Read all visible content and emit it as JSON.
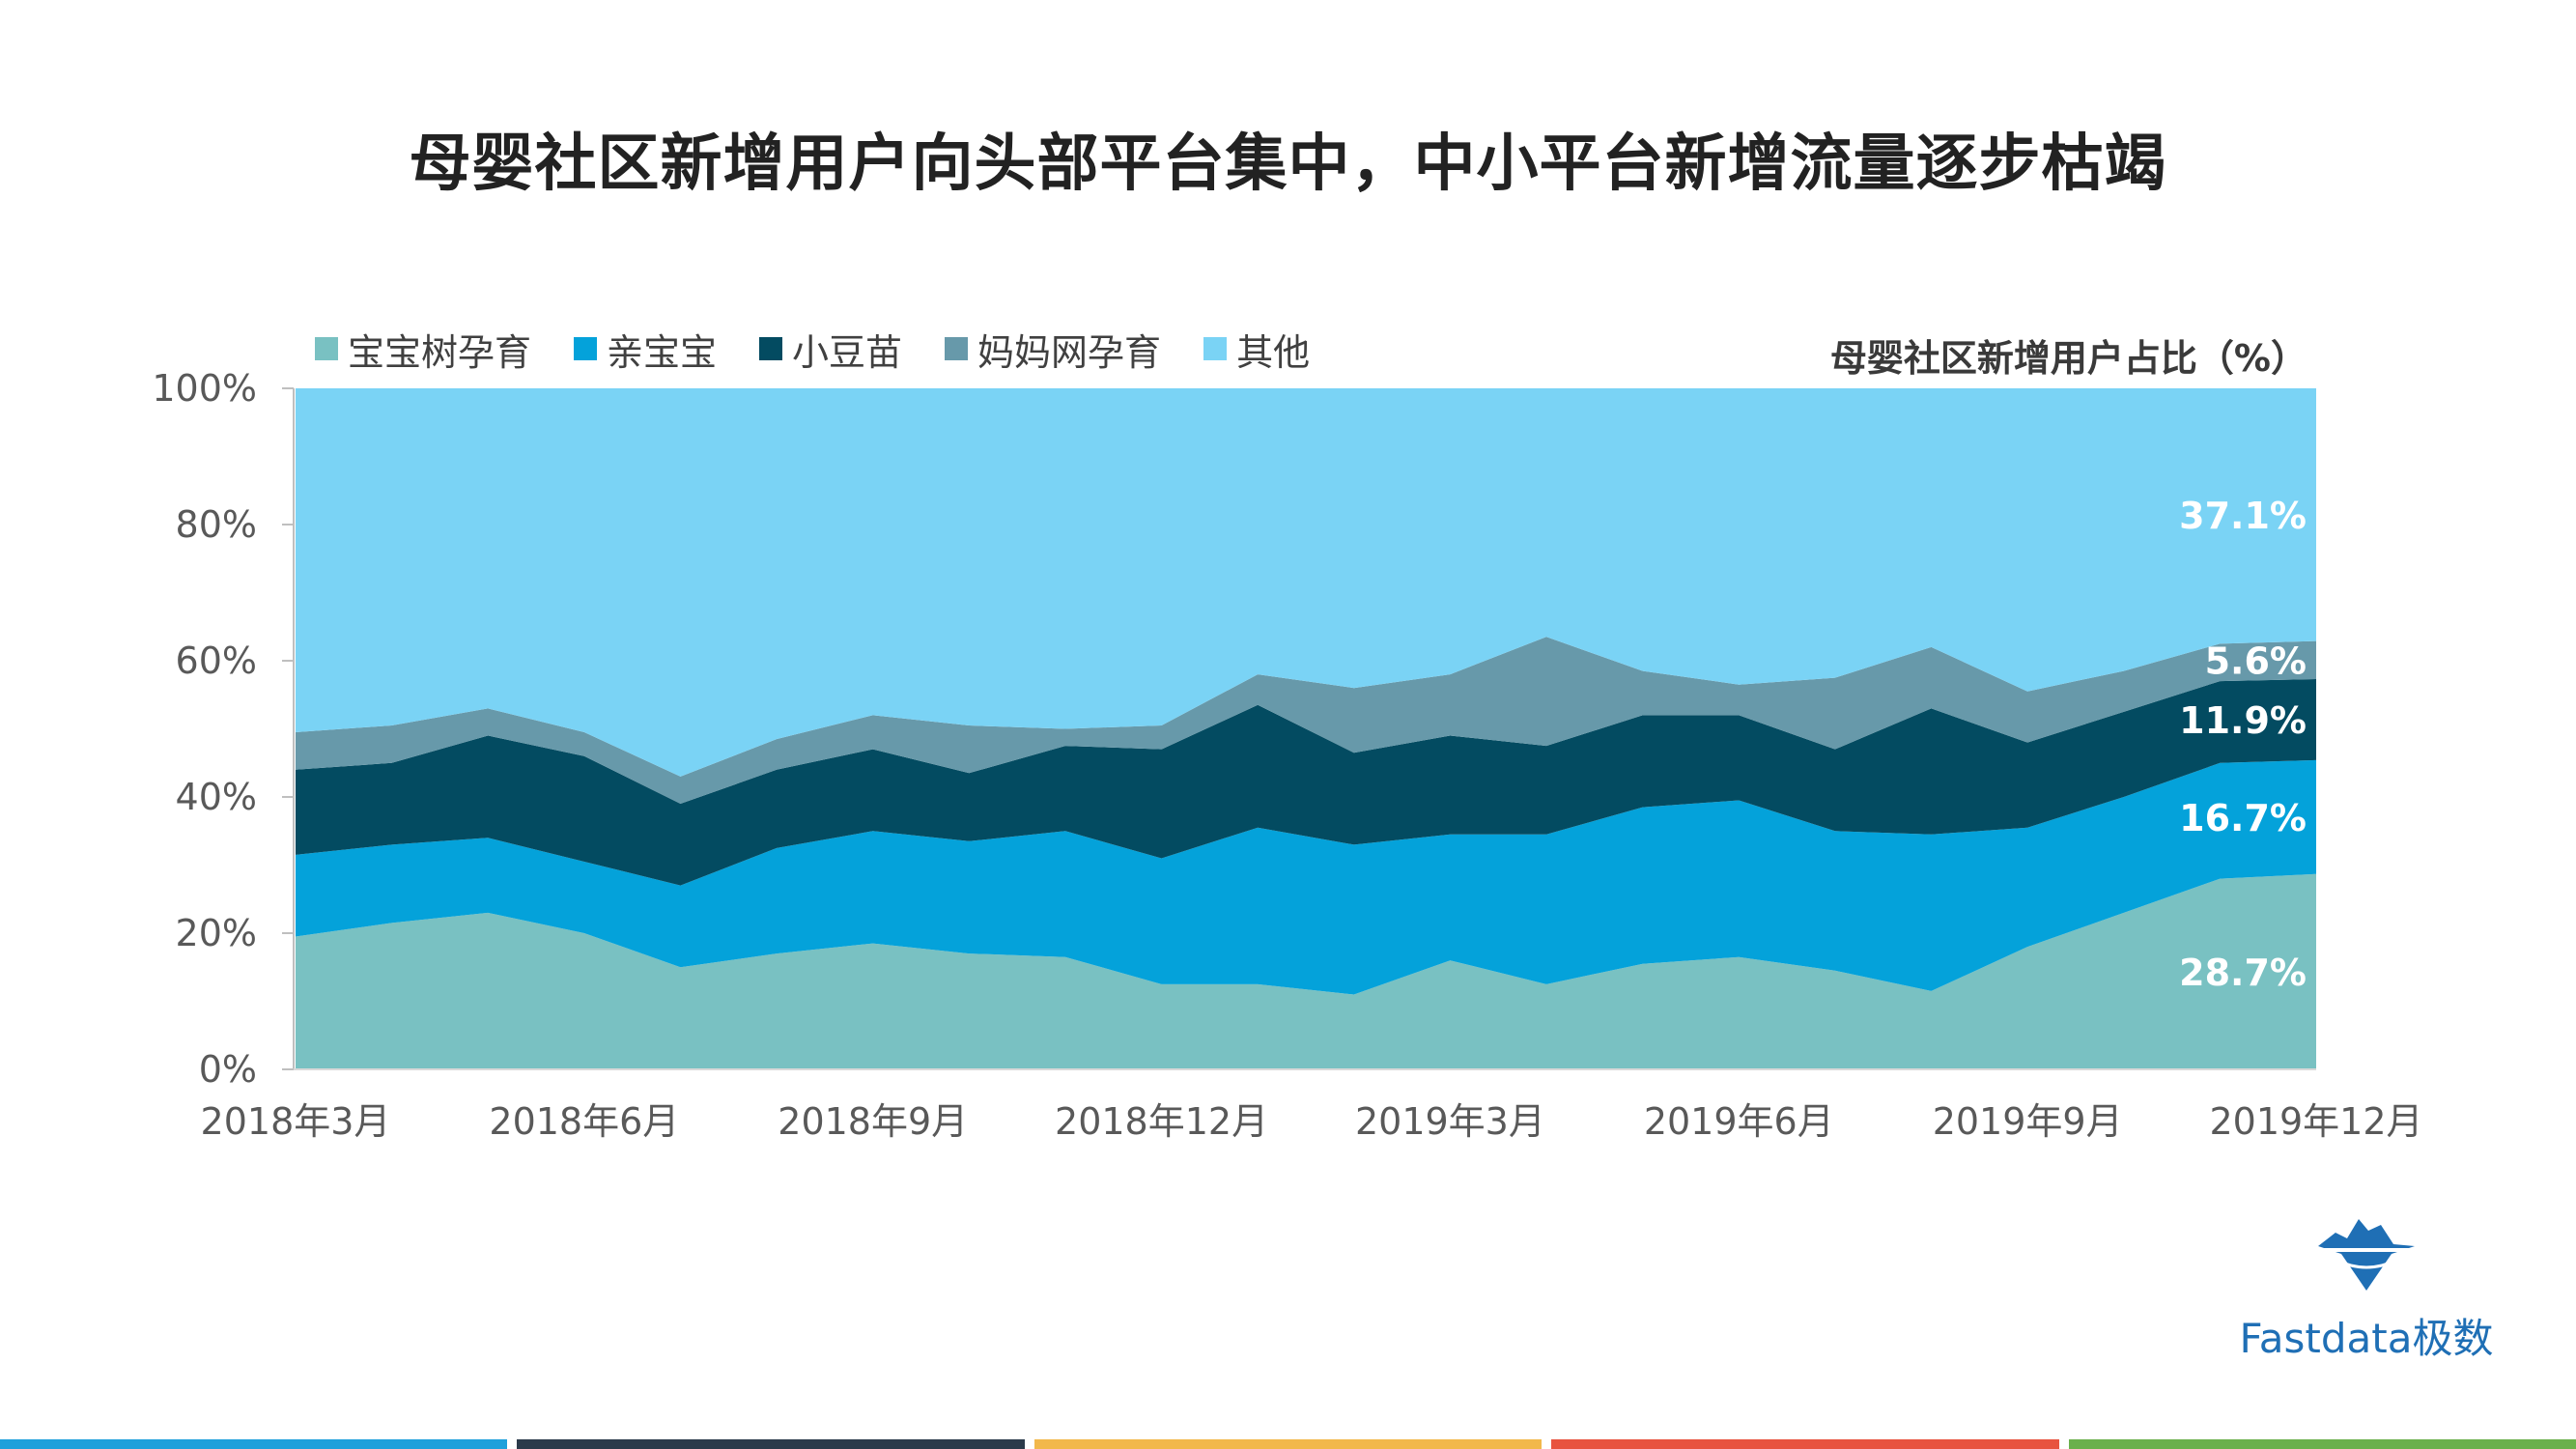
{
  "title": "母婴社区新增用户向头部平台集中，中小平台新增流量逐步枯竭",
  "brand": {
    "name": "Fastdata极数",
    "color": "#1f6fb5"
  },
  "footer_colors": [
    "#1ea0db",
    "#2b3a4a",
    "#f2b84b",
    "#e8533f",
    "#6ab04c"
  ],
  "chart_data": {
    "type": "area",
    "stacked": true,
    "subtitle": "母婴社区新增用户占比（%）",
    "x": [
      "2018年3月",
      "2018年4月",
      "2018年5月",
      "2018年6月",
      "2018年7月",
      "2018年8月",
      "2018年9月",
      "2018年10月",
      "2018年11月",
      "2018年12月",
      "2019年1月",
      "2019年2月",
      "2019年3月",
      "2019年4月",
      "2019年5月",
      "2019年6月",
      "2019年7月",
      "2019年8月",
      "2019年9月",
      "2019年10月",
      "2019年11月",
      "2019年12月"
    ],
    "tick_labels": [
      "2018年3月",
      "2018年6月",
      "2018年9月",
      "2018年12月",
      "2019年3月",
      "2019年6月",
      "2019年9月",
      "2019年12月"
    ],
    "tick_indices": [
      0,
      3,
      6,
      9,
      12,
      15,
      18,
      21
    ],
    "y_ticks": [
      "0%",
      "20%",
      "40%",
      "60%",
      "80%",
      "100%"
    ],
    "ylim": [
      0,
      100
    ],
    "legend_position": "top-left",
    "series": [
      {
        "name": "宝宝树孕育",
        "color": "#79c1c2",
        "values": [
          19.5,
          21.5,
          23,
          20,
          15,
          17,
          18.5,
          17,
          16.5,
          12.5,
          12.5,
          11,
          16,
          12.5,
          15.5,
          16.5,
          14.5,
          11.5,
          18,
          23,
          28,
          28.7
        ]
      },
      {
        "name": "亲宝宝",
        "color": "#04a2da",
        "values": [
          12,
          11.5,
          11,
          10.5,
          12,
          15.5,
          16.5,
          16.5,
          18.5,
          18.5,
          23,
          22,
          18.5,
          22,
          23,
          23,
          20.5,
          23,
          17.5,
          17,
          17,
          16.7
        ]
      },
      {
        "name": "小豆苗",
        "color": "#034b61",
        "values": [
          12.5,
          12,
          15,
          15.5,
          12,
          11.5,
          12,
          10,
          12.5,
          16,
          18,
          13.5,
          14.5,
          13,
          13.5,
          12.5,
          12,
          18.5,
          12.5,
          12.5,
          12,
          11.9
        ]
      },
      {
        "name": "妈妈网孕育",
        "color": "#6799aa",
        "values": [
          5.5,
          5.5,
          4,
          3.5,
          4,
          4.5,
          5,
          7,
          2.5,
          3.5,
          4.5,
          9.5,
          9,
          16,
          6.5,
          4.5,
          10.5,
          9,
          7.5,
          6,
          5.5,
          5.6
        ]
      },
      {
        "name": "其他",
        "color": "#7ad3f5",
        "values": [
          50.5,
          49.5,
          47,
          50.5,
          57,
          51.5,
          48,
          49.5,
          50,
          49.5,
          42,
          44,
          42,
          36.5,
          41.5,
          43.5,
          42.5,
          38,
          44.5,
          41.5,
          37.5,
          37.1
        ]
      }
    ],
    "end_labels": [
      "28.7%",
      "16.7%",
      "11.9%",
      "5.6%",
      "37.1%"
    ]
  }
}
